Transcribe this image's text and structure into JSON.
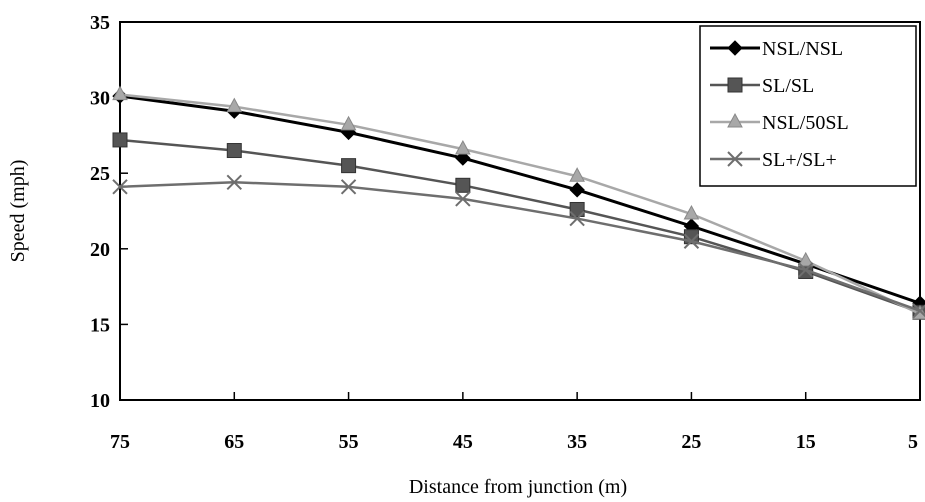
{
  "chart_data": {
    "type": "line",
    "title": "",
    "xlabel": "Distance from  junction (m)",
    "ylabel": "Speed (mph)",
    "x": [
      75,
      65,
      55,
      45,
      35,
      25,
      15,
      5
    ],
    "x_tick_labels": [
      "75",
      "65",
      "55",
      "45",
      "35",
      "25",
      "15",
      "5"
    ],
    "x_reversed": true,
    "xlim": [
      75,
      5
    ],
    "ylim": [
      10,
      35
    ],
    "y_ticks": [
      10,
      15,
      20,
      25,
      30,
      35
    ],
    "y_tick_labels": [
      "10",
      "15",
      "20",
      "25",
      "30",
      "35"
    ],
    "grid": false,
    "legend_position": "top-right",
    "series": [
      {
        "name": "NSL/NSL",
        "color": "#000000",
        "marker": "diamond",
        "values": [
          30.1,
          29.1,
          27.7,
          26.0,
          23.9,
          21.5,
          19.0,
          16.4
        ]
      },
      {
        "name": "SL/SL",
        "color": "#555555",
        "marker": "square",
        "values": [
          27.2,
          26.5,
          25.5,
          24.2,
          22.6,
          20.8,
          18.5,
          15.8
        ]
      },
      {
        "name": "NSL/50SL",
        "color": "#a8a8a8",
        "marker": "triangle",
        "values": [
          30.2,
          29.4,
          28.2,
          26.6,
          24.8,
          22.3,
          19.2,
          15.7
        ]
      },
      {
        "name": "SL+/SL+",
        "color": "#6e6e6e",
        "marker": "x",
        "values": [
          24.1,
          24.4,
          24.1,
          23.3,
          22.0,
          20.5,
          18.6,
          15.9
        ]
      }
    ]
  }
}
